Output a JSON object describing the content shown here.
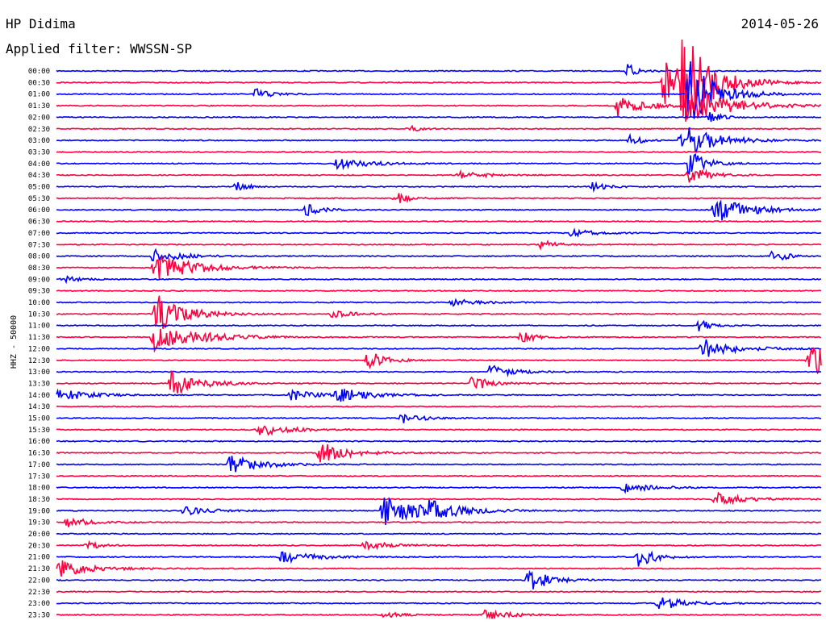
{
  "header": {
    "station": "HP Didima",
    "date": "2014-05-26",
    "filter": "Applied filter: WWSSN-SP"
  },
  "chart_data": {
    "type": "line",
    "title": "HP Didima",
    "ylabel": "HHZ - 50000",
    "times": [
      "00:00",
      "00:30",
      "01:00",
      "01:30",
      "02:00",
      "02:30",
      "03:00",
      "03:30",
      "04:00",
      "04:30",
      "05:00",
      "05:30",
      "06:00",
      "06:30",
      "07:00",
      "07:30",
      "08:00",
      "08:30",
      "09:00",
      "09:30",
      "10:00",
      "10:30",
      "11:00",
      "11:30",
      "12:00",
      "12:30",
      "13:00",
      "13:30",
      "14:00",
      "14:30",
      "15:00",
      "15:30",
      "16:00",
      "16:30",
      "17:00",
      "17:30",
      "18:00",
      "18:30",
      "19:00",
      "19:30",
      "20:00",
      "20:30",
      "21:00",
      "21:30",
      "22:00",
      "22:30",
      "23:00",
      "23:30"
    ],
    "trace_colors": [
      "#0000ff",
      "#ff0040"
    ],
    "x_range_minutes": [
      0,
      30
    ],
    "events": [
      {
        "row": 0,
        "t": 22.4,
        "amp": 0.6,
        "dur": 0.5
      },
      {
        "row": 1,
        "t": 23.8,
        "amp": 2.5,
        "dur": 1.2
      },
      {
        "row": 1,
        "t": 24.5,
        "amp": 3.5,
        "dur": 1.0
      },
      {
        "row": 2,
        "t": 7.8,
        "amp": 0.5,
        "dur": 0.6
      },
      {
        "row": 2,
        "t": 24.8,
        "amp": 3.0,
        "dur": 1.0
      },
      {
        "row": 3,
        "t": 22.0,
        "amp": 0.9,
        "dur": 1.0
      },
      {
        "row": 3,
        "t": 24.7,
        "amp": 1.6,
        "dur": 1.5
      },
      {
        "row": 4,
        "t": 25.6,
        "amp": 0.6,
        "dur": 0.4
      },
      {
        "row": 5,
        "t": 13.8,
        "amp": 0.3,
        "dur": 0.4
      },
      {
        "row": 6,
        "t": 24.5,
        "amp": 1.5,
        "dur": 1.2
      },
      {
        "row": 6,
        "t": 22.5,
        "amp": 0.5,
        "dur": 0.4
      },
      {
        "row": 8,
        "t": 11.0,
        "amp": 0.5,
        "dur": 1.2
      },
      {
        "row": 8,
        "t": 24.8,
        "amp": 1.2,
        "dur": 0.6
      },
      {
        "row": 9,
        "t": 15.8,
        "amp": 0.3,
        "dur": 1.0
      },
      {
        "row": 9,
        "t": 24.8,
        "amp": 1.0,
        "dur": 0.6
      },
      {
        "row": 10,
        "t": 7.0,
        "amp": 0.6,
        "dur": 0.4
      },
      {
        "row": 10,
        "t": 21.0,
        "amp": 0.4,
        "dur": 0.5
      },
      {
        "row": 11,
        "t": 13.3,
        "amp": 0.6,
        "dur": 0.5
      },
      {
        "row": 12,
        "t": 9.8,
        "amp": 0.6,
        "dur": 0.5
      },
      {
        "row": 12,
        "t": 25.8,
        "amp": 1.2,
        "dur": 1.2
      },
      {
        "row": 14,
        "t": 20.2,
        "amp": 0.3,
        "dur": 1.0
      },
      {
        "row": 15,
        "t": 19.0,
        "amp": 0.4,
        "dur": 0.5
      },
      {
        "row": 16,
        "t": 3.8,
        "amp": 0.6,
        "dur": 1.0
      },
      {
        "row": 16,
        "t": 28.1,
        "amp": 0.8,
        "dur": 0.4
      },
      {
        "row": 17,
        "t": 3.8,
        "amp": 1.2,
        "dur": 1.5
      },
      {
        "row": 18,
        "t": 0.2,
        "amp": 0.3,
        "dur": 0.6
      },
      {
        "row": 20,
        "t": 15.5,
        "amp": 0.3,
        "dur": 1.0
      },
      {
        "row": 21,
        "t": 3.9,
        "amp": 1.8,
        "dur": 1.0
      },
      {
        "row": 21,
        "t": 10.8,
        "amp": 0.3,
        "dur": 0.8
      },
      {
        "row": 22,
        "t": 25.2,
        "amp": 0.5,
        "dur": 0.5
      },
      {
        "row": 23,
        "t": 3.8,
        "amp": 1.4,
        "dur": 1.5
      },
      {
        "row": 23,
        "t": 18.2,
        "amp": 0.5,
        "dur": 0.6
      },
      {
        "row": 24,
        "t": 25.3,
        "amp": 0.9,
        "dur": 1.2
      },
      {
        "row": 25,
        "t": 12.2,
        "amp": 0.9,
        "dur": 0.6
      },
      {
        "row": 25,
        "t": 29.5,
        "amp": 1.6,
        "dur": 1.5
      },
      {
        "row": 26,
        "t": 17.0,
        "amp": 0.6,
        "dur": 0.8
      },
      {
        "row": 27,
        "t": 4.5,
        "amp": 1.2,
        "dur": 1.0
      },
      {
        "row": 27,
        "t": 16.3,
        "amp": 0.7,
        "dur": 0.6
      },
      {
        "row": 28,
        "t": 0.1,
        "amp": 0.6,
        "dur": 1.0
      },
      {
        "row": 28,
        "t": 11.0,
        "amp": 0.6,
        "dur": 1.2
      },
      {
        "row": 28,
        "t": 9.2,
        "amp": 0.5,
        "dur": 0.8
      },
      {
        "row": 30,
        "t": 13.5,
        "amp": 0.5,
        "dur": 0.7
      },
      {
        "row": 31,
        "t": 7.9,
        "amp": 0.6,
        "dur": 1.0
      },
      {
        "row": 33,
        "t": 10.3,
        "amp": 1.0,
        "dur": 1.0
      },
      {
        "row": 34,
        "t": 6.8,
        "amp": 0.8,
        "dur": 1.2
      },
      {
        "row": 36,
        "t": 22.2,
        "amp": 0.5,
        "dur": 1.0
      },
      {
        "row": 37,
        "t": 25.8,
        "amp": 0.6,
        "dur": 1.0
      },
      {
        "row": 38,
        "t": 12.8,
        "amp": 1.3,
        "dur": 1.5
      },
      {
        "row": 38,
        "t": 5.0,
        "amp": 0.4,
        "dur": 1.0
      },
      {
        "row": 38,
        "t": 14.6,
        "amp": 0.6,
        "dur": 1.0
      },
      {
        "row": 39,
        "t": 0.4,
        "amp": 0.5,
        "dur": 0.8
      },
      {
        "row": 41,
        "t": 1.2,
        "amp": 0.5,
        "dur": 0.4
      },
      {
        "row": 41,
        "t": 12.0,
        "amp": 0.4,
        "dur": 1.0
      },
      {
        "row": 42,
        "t": 8.8,
        "amp": 0.5,
        "dur": 1.2
      },
      {
        "row": 42,
        "t": 22.8,
        "amp": 1.0,
        "dur": 0.6
      },
      {
        "row": 43,
        "t": 0.0,
        "amp": 0.8,
        "dur": 1.2
      },
      {
        "row": 44,
        "t": 18.5,
        "amp": 1.0,
        "dur": 0.8
      },
      {
        "row": 46,
        "t": 23.6,
        "amp": 0.6,
        "dur": 1.0
      },
      {
        "row": 47,
        "t": 16.8,
        "amp": 0.4,
        "dur": 1.0
      },
      {
        "row": 47,
        "t": 12.8,
        "amp": 0.3,
        "dur": 0.6
      }
    ]
  }
}
